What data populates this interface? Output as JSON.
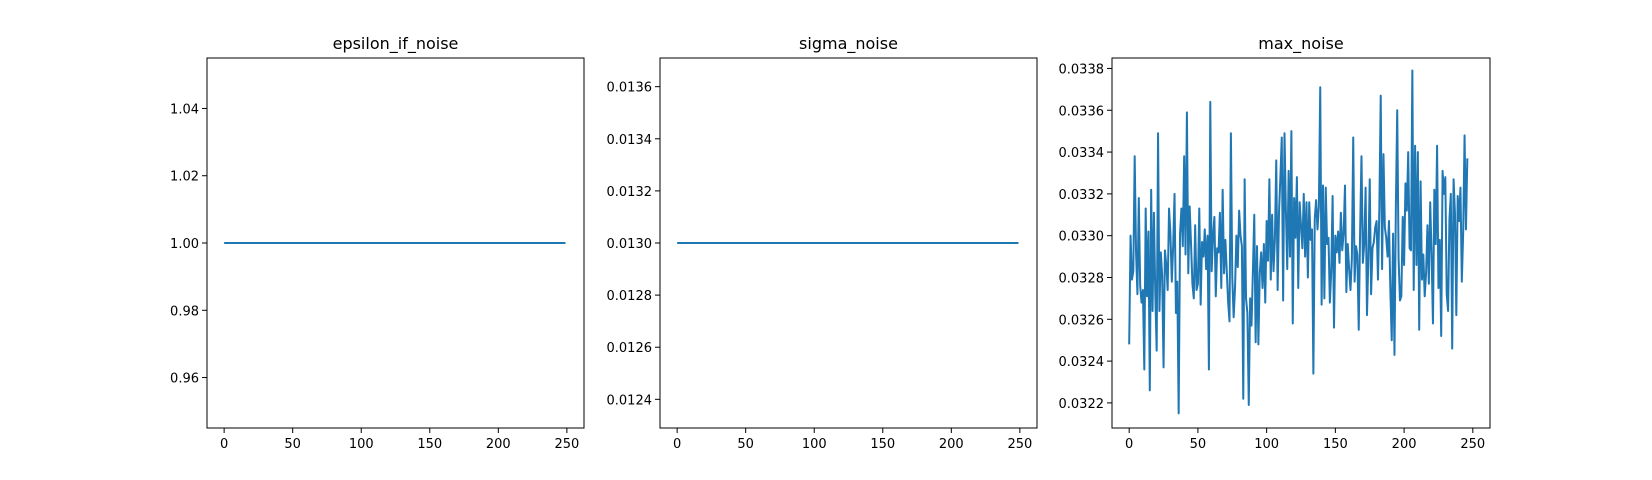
{
  "chart_data": [
    {
      "type": "line",
      "title": "epsilon_if_noise",
      "xlabel": "",
      "ylabel": "",
      "xlim": [
        -12.5,
        262.5
      ],
      "ylim": [
        0.945,
        1.055
      ],
      "xticks": [
        0,
        50,
        100,
        150,
        200,
        250
      ],
      "yticks": [
        0.96,
        0.98,
        1.0,
        1.02,
        1.04
      ],
      "ytick_labels": [
        "0.96",
        "0.98",
        "1.00",
        "1.02",
        "1.04"
      ],
      "grid": false,
      "color": "#1f77b4",
      "series": [
        {
          "x": [
            0,
            249
          ],
          "y": [
            1.0,
            1.0
          ]
        }
      ]
    },
    {
      "type": "line",
      "title": "sigma_noise",
      "xlabel": "",
      "ylabel": "",
      "xlim": [
        -12.5,
        262.5
      ],
      "ylim": [
        0.01229,
        0.01371
      ],
      "xticks": [
        0,
        50,
        100,
        150,
        200,
        250
      ],
      "yticks": [
        0.0124,
        0.0126,
        0.0128,
        0.013,
        0.0132,
        0.0134,
        0.0136
      ],
      "ytick_labels": [
        "0.0124",
        "0.0126",
        "0.0128",
        "0.0130",
        "0.0132",
        "0.0134",
        "0.0136"
      ],
      "grid": false,
      "color": "#1f77b4",
      "series": [
        {
          "x": [
            0,
            249
          ],
          "y": [
            0.013,
            0.013
          ]
        }
      ]
    },
    {
      "type": "line",
      "title": "max_noise",
      "xlabel": "",
      "ylabel": "",
      "xlim": [
        -12.5,
        262.5
      ],
      "ylim": [
        0.03208,
        0.03385
      ],
      "xticks": [
        0,
        50,
        100,
        150,
        200,
        250
      ],
      "yticks": [
        0.0322,
        0.0324,
        0.0326,
        0.0328,
        0.033,
        0.0332,
        0.0334,
        0.0336,
        0.0338
      ],
      "ytick_labels": [
        "0.0322",
        "0.0324",
        "0.0326",
        "0.0328",
        "0.0330",
        "0.0332",
        "0.0334",
        "0.0336",
        "0.0338"
      ],
      "grid": false,
      "color": "#1f77b4",
      "series": [
        {
          "x_start": 0,
          "x_step": 1,
          "y": [
            0.03248,
            0.033,
            0.03279,
            0.03283,
            0.03338,
            0.03292,
            0.03272,
            0.03318,
            0.03276,
            0.03268,
            0.03274,
            0.03236,
            0.03313,
            0.03271,
            0.03302,
            0.03226,
            0.03322,
            0.03264,
            0.03311,
            0.03272,
            0.03245,
            0.03349,
            0.03264,
            0.03292,
            0.03281,
            0.03237,
            0.03293,
            0.03286,
            0.03274,
            0.03313,
            0.03301,
            0.03278,
            0.03295,
            0.0332,
            0.03263,
            0.03278,
            0.03215,
            0.03301,
            0.03313,
            0.03295,
            0.03338,
            0.03291,
            0.03359,
            0.03282,
            0.03314,
            0.03296,
            0.03277,
            0.0327,
            0.03305,
            0.03274,
            0.03277,
            0.03313,
            0.03267,
            0.03297,
            0.0329,
            0.03303,
            0.03284,
            0.033,
            0.03236,
            0.03364,
            0.03283,
            0.033,
            0.03309,
            0.03271,
            0.03294,
            0.03292,
            0.03311,
            0.03275,
            0.03322,
            0.03282,
            0.03298,
            0.03283,
            0.03268,
            0.03259,
            0.03349,
            0.0328,
            0.03261,
            0.03275,
            0.033,
            0.03285,
            0.03312,
            0.033,
            0.03295,
            0.03222,
            0.03327,
            0.0327,
            0.03263,
            0.03219,
            0.0327,
            0.03257,
            0.03283,
            0.0331,
            0.03249,
            0.03295,
            0.03248,
            0.03282,
            0.03292,
            0.03275,
            0.03296,
            0.03268,
            0.03307,
            0.03288,
            0.03327,
            0.03279,
            0.0331,
            0.03283,
            0.03298,
            0.03336,
            0.03274,
            0.03311,
            0.03328,
            0.03347,
            0.03269,
            0.03349,
            0.03312,
            0.03284,
            0.03331,
            0.0329,
            0.0335,
            0.03258,
            0.03318,
            0.03299,
            0.03328,
            0.03275,
            0.03316,
            0.03305,
            0.03294,
            0.0332,
            0.0329,
            0.03316,
            0.0328,
            0.03316,
            0.03298,
            0.03303,
            0.03234,
            0.03308,
            0.03317,
            0.03303,
            0.03314,
            0.03371,
            0.03267,
            0.03324,
            0.0327,
            0.03323,
            0.03296,
            0.03299,
            0.03268,
            0.03283,
            0.03319,
            0.03256,
            0.033,
            0.03292,
            0.03302,
            0.03287,
            0.03311,
            0.03293,
            0.03301,
            0.03324,
            0.03273,
            0.03296,
            0.03284,
            0.03274,
            0.03289,
            0.03347,
            0.03278,
            0.03295,
            0.03291,
            0.03255,
            0.03302,
            0.03338,
            0.03287,
            0.03296,
            0.03323,
            0.03262,
            0.03289,
            0.03327,
            0.03272,
            0.03294,
            0.03297,
            0.03304,
            0.03307,
            0.03279,
            0.03313,
            0.03367,
            0.03284,
            0.03339,
            0.03304,
            0.03299,
            0.0329,
            0.03307,
            0.03274,
            0.0325,
            0.03301,
            0.03243,
            0.03313,
            0.0336,
            0.03289,
            0.03269,
            0.03271,
            0.03309,
            0.03286,
            0.03325,
            0.03312,
            0.0334,
            0.03294,
            0.03293,
            0.03379,
            0.03274,
            0.03343,
            0.03286,
            0.0334,
            0.03255,
            0.03326,
            0.03279,
            0.03291,
            0.03271,
            0.03282,
            0.03305,
            0.03277,
            0.03316,
            0.03291,
            0.03258,
            0.03322,
            0.03296,
            0.03343,
            0.03275,
            0.03298,
            0.03252,
            0.03331,
            0.0332,
            0.03328,
            0.03272,
            0.03264,
            0.03308,
            0.0332,
            0.03246,
            0.03327,
            0.03311,
            0.03262,
            0.03319,
            0.03307,
            0.03323,
            0.03278,
            0.03302,
            0.03348,
            0.03303,
            0.03337
          ]
        }
      ]
    }
  ]
}
